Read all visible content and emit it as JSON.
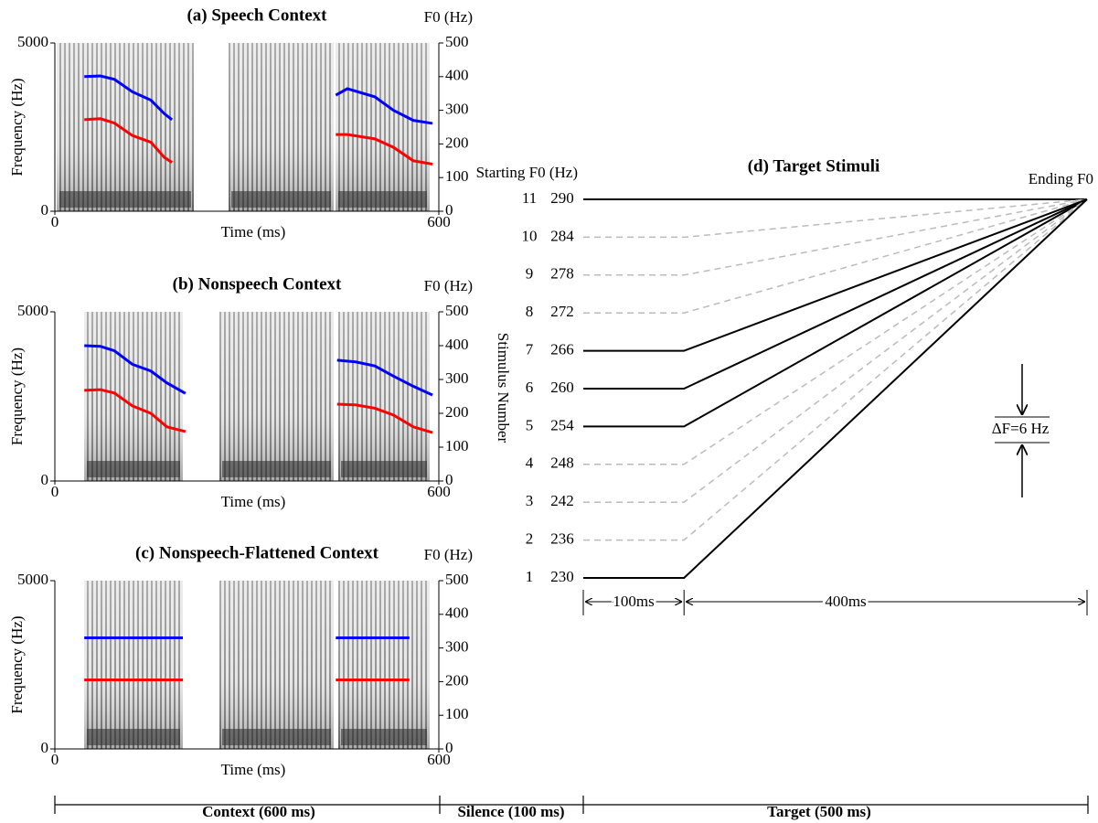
{
  "chart_data": [
    {
      "type": "spectrogram",
      "title": "(a) Speech Context",
      "xlabel": "Time (ms)",
      "ylabel": "Frequency (Hz)",
      "y2label": "F0 (Hz)",
      "xlim": [
        0,
        600
      ],
      "xticks": [
        0,
        600
      ],
      "ylim": [
        0,
        5000
      ],
      "yticks": [
        0,
        5000
      ],
      "y2lim": [
        0,
        500
      ],
      "y2ticks": [
        0,
        100,
        200,
        300,
        400,
        500
      ],
      "x": [
        46,
        71,
        93,
        121,
        150,
        171,
        183,
        300,
        439,
        457,
        500,
        529,
        560,
        590
      ],
      "series": [
        {
          "color": "#0000ff",
          "axis": "y2",
          "values": [
            400,
            402,
            392,
            355,
            330,
            290,
            272,
            null,
            345,
            364,
            340,
            300,
            270,
            261
          ]
        },
        {
          "color": "#ff0000",
          "axis": "y2",
          "values": [
            272,
            275,
            262,
            225,
            205,
            160,
            145,
            null,
            228,
            228,
            215,
            190,
            150,
            140
          ]
        }
      ]
    },
    {
      "type": "spectrogram",
      "title": "(b) Nonspeech Context",
      "xlabel": "Time (ms)",
      "ylabel": "Frequency (Hz)",
      "y2label": "F0 (Hz)",
      "xlim": [
        0,
        600
      ],
      "xticks": [
        0,
        600
      ],
      "ylim": [
        0,
        5000
      ],
      "yticks": [
        0,
        5000
      ],
      "y2lim": [
        0,
        500
      ],
      "y2ticks": [
        0,
        100,
        200,
        300,
        400,
        500
      ],
      "x": [
        46,
        71,
        93,
        121,
        150,
        175,
        204,
        300,
        441,
        470,
        500,
        529,
        560,
        590
      ],
      "series": [
        {
          "color": "#0000ff",
          "axis": "y2",
          "values": [
            400,
            398,
            385,
            345,
            325,
            290,
            259,
            null,
            357,
            352,
            340,
            310,
            280,
            254
          ]
        },
        {
          "color": "#ff0000",
          "axis": "y2",
          "values": [
            268,
            270,
            260,
            222,
            200,
            160,
            146,
            null,
            227,
            225,
            215,
            195,
            160,
            143
          ]
        }
      ]
    },
    {
      "type": "spectrogram",
      "title": "(c) Nonspeech-Flattened Context",
      "xlabel": "Time (ms)",
      "ylabel": "Frequency (Hz)",
      "y2label": "F0 (Hz)",
      "xlim": [
        0,
        600
      ],
      "xticks": [
        0,
        600
      ],
      "ylim": [
        0,
        5000
      ],
      "yticks": [
        0,
        5000
      ],
      "y2lim": [
        0,
        500
      ],
      "y2ticks": [
        0,
        100,
        200,
        300,
        400,
        500
      ],
      "x": [
        46,
        200,
        300,
        439,
        554
      ],
      "series": [
        {
          "color": "#0000ff",
          "axis": "y2",
          "values": [
            330,
            330,
            null,
            330,
            330
          ]
        },
        {
          "color": "#ff0000",
          "axis": "y2",
          "values": [
            205,
            205,
            null,
            205,
            205
          ]
        }
      ]
    },
    {
      "type": "stimuli",
      "title": "(d) Target Stimuli",
      "ylabel": "Stimulus Number",
      "start_label": "Starting F0 (Hz)",
      "end_label": "Ending F0",
      "x": [
        0,
        100,
        500
      ],
      "xlim": [
        0,
        500
      ],
      "ylim": [
        230,
        290
      ],
      "stimuli": [
        {
          "number": 11,
          "style": "solid",
          "values": [
            290,
            290,
            290
          ]
        },
        {
          "number": 10,
          "style": "dashed",
          "values": [
            284,
            284,
            290
          ]
        },
        {
          "number": 9,
          "style": "dashed",
          "values": [
            278,
            278,
            290
          ]
        },
        {
          "number": 8,
          "style": "dashed",
          "values": [
            272,
            272,
            290
          ]
        },
        {
          "number": 7,
          "style": "solid",
          "values": [
            266,
            266,
            290
          ]
        },
        {
          "number": 6,
          "style": "solid",
          "values": [
            260,
            260,
            290
          ]
        },
        {
          "number": 5,
          "style": "solid",
          "values": [
            254,
            254,
            290
          ]
        },
        {
          "number": 4,
          "style": "dashed",
          "values": [
            248,
            248,
            290
          ]
        },
        {
          "number": 3,
          "style": "dashed",
          "values": [
            242,
            242,
            290
          ]
        },
        {
          "number": 2,
          "style": "dashed",
          "values": [
            236,
            236,
            290
          ]
        },
        {
          "number": 1,
          "style": "solid",
          "values": [
            230,
            230,
            290
          ]
        }
      ],
      "annotations": {
        "delta": "ΔF=6 Hz",
        "first_segment": "100ms",
        "second_segment": "400ms"
      }
    }
  ],
  "timeline": {
    "segments": [
      "Context (600 ms)",
      "Silence (100 ms)",
      "Target (500 ms)"
    ]
  }
}
